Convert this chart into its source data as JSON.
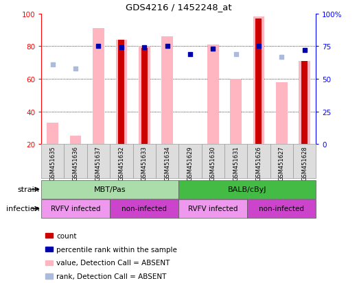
{
  "title": "GDS4216 / 1452248_at",
  "samples": [
    "GSM451635",
    "GSM451636",
    "GSM451637",
    "GSM451632",
    "GSM451633",
    "GSM451634",
    "GSM451629",
    "GSM451630",
    "GSM451631",
    "GSM451626",
    "GSM451627",
    "GSM451628"
  ],
  "pink_bar_values": [
    33,
    25,
    91,
    84,
    80,
    86,
    20,
    81,
    60,
    98,
    58,
    71
  ],
  "red_bar_values": [
    0,
    0,
    0,
    84,
    79,
    0,
    0,
    0,
    0,
    97,
    0,
    71
  ],
  "has_red": [
    false,
    false,
    false,
    true,
    true,
    false,
    false,
    false,
    false,
    true,
    false,
    true
  ],
  "blue_dot_pct": [
    null,
    null,
    75,
    74,
    74,
    75,
    69,
    73,
    null,
    75,
    null,
    72
  ],
  "light_blue_pct": [
    61,
    58,
    null,
    null,
    null,
    null,
    null,
    null,
    69,
    null,
    67,
    null
  ],
  "strain_groups": [
    {
      "label": "MBT/Pas",
      "start": 0,
      "end": 6,
      "color": "#AADDAA"
    },
    {
      "label": "BALB/cByJ",
      "start": 6,
      "end": 12,
      "color": "#44BB44"
    }
  ],
  "infection_groups": [
    {
      "label": "RVFV infected",
      "start": 0,
      "end": 3,
      "color": "#EE99EE"
    },
    {
      "label": "non-infected",
      "start": 3,
      "end": 6,
      "color": "#CC44CC"
    },
    {
      "label": "RVFV infected",
      "start": 6,
      "end": 9,
      "color": "#EE99EE"
    },
    {
      "label": "non-infected",
      "start": 9,
      "end": 12,
      "color": "#CC44CC"
    }
  ],
  "ylim_left": [
    20,
    100
  ],
  "left_ticks": [
    20,
    40,
    60,
    80,
    100
  ],
  "right_tick_vals": [
    0,
    25,
    50,
    75,
    100
  ],
  "right_tick_labels": [
    "0",
    "25",
    "50",
    "75",
    "100%"
  ],
  "grid_values": [
    40,
    60,
    80
  ],
  "pink_color": "#FFB6C1",
  "red_color": "#CC0000",
  "blue_color": "#0000AA",
  "light_blue_color": "#AABBDD",
  "bar_width": 0.5,
  "dot_size": 22
}
